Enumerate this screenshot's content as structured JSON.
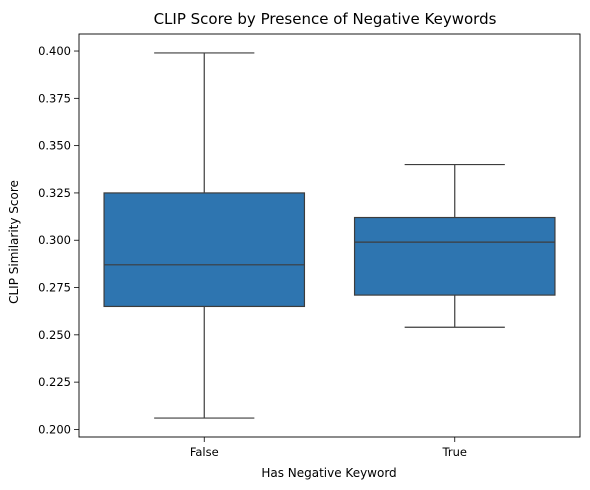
{
  "chart_data": {
    "type": "box",
    "title": "CLIP Score by Presence of Negative Keywords",
    "xlabel": "Has Negative Keyword",
    "ylabel": "CLIP Similarity Score",
    "categories": [
      "False",
      "True"
    ],
    "boxes": [
      {
        "category": "False",
        "whisker_low": 0.206,
        "q1": 0.265,
        "median": 0.287,
        "q3": 0.325,
        "whisker_high": 0.399
      },
      {
        "category": "True",
        "whisker_low": 0.254,
        "q1": 0.271,
        "median": 0.299,
        "q3": 0.312,
        "whisker_high": 0.34
      }
    ],
    "ylim": [
      0.196,
      0.409
    ],
    "yticks": [
      "0.200",
      "0.225",
      "0.250",
      "0.275",
      "0.300",
      "0.325",
      "0.350",
      "0.375",
      "0.400"
    ],
    "grid": false,
    "box_color": "#2e75b0",
    "line_color": "#3d3d3d"
  }
}
